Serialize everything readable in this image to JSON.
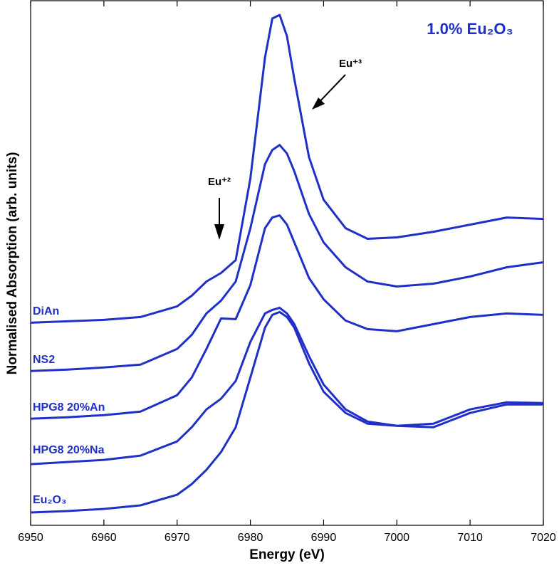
{
  "chart_data": {
    "type": "line",
    "title": "1.0% Eu₂O₃",
    "xlabel": "Energy (eV)",
    "ylabel": "Normalised Absorption (arb. units)",
    "annotations": [
      "Eu⁺³",
      "Eu⁺²"
    ],
    "x": [
      6950,
      6955,
      6960,
      6965,
      6970,
      6972,
      6974,
      6976,
      6978,
      6980,
      6982,
      6983,
      6984,
      6985,
      6986,
      6988,
      6990,
      6993,
      6996,
      7000,
      7005,
      7010,
      7015,
      7020
    ],
    "series": [
      {
        "name": "DiAn",
        "color": "#1f2fc8",
        "values": [
          2.85,
          2.87,
          2.89,
          2.93,
          3.08,
          3.23,
          3.43,
          3.55,
          3.73,
          4.88,
          6.58,
          7.13,
          7.18,
          6.88,
          6.28,
          5.18,
          4.58,
          4.18,
          4.03,
          4.05,
          4.13,
          4.23,
          4.33,
          4.31
        ]
      },
      {
        "name": "NS2",
        "color": "#1f2fc8",
        "values": [
          2.17,
          2.19,
          2.22,
          2.26,
          2.48,
          2.68,
          2.98,
          3.16,
          3.43,
          4.18,
          5.08,
          5.28,
          5.35,
          5.23,
          4.98,
          4.38,
          3.98,
          3.63,
          3.43,
          3.36,
          3.4,
          3.5,
          3.63,
          3.7
        ]
      },
      {
        "name": "HPG8 20%An",
        "color": "#1f2fc8",
        "values": [
          1.5,
          1.52,
          1.55,
          1.6,
          1.83,
          2.08,
          2.48,
          2.91,
          2.9,
          3.38,
          4.18,
          4.33,
          4.36,
          4.23,
          3.98,
          3.48,
          3.18,
          2.88,
          2.76,
          2.73,
          2.83,
          2.93,
          2.98,
          2.96
        ]
      },
      {
        "name": "HPG8 20%Na",
        "color": "#1f2fc8",
        "values": [
          0.86,
          0.89,
          0.92,
          0.98,
          1.18,
          1.38,
          1.63,
          1.78,
          2.03,
          2.58,
          2.98,
          3.03,
          3.06,
          2.98,
          2.83,
          2.38,
          1.98,
          1.63,
          1.46,
          1.4,
          1.43,
          1.63,
          1.73,
          1.72
        ]
      },
      {
        "name": "Eu₂O₃",
        "color": "#1f2fc8",
        "values": [
          0.18,
          0.2,
          0.23,
          0.28,
          0.43,
          0.58,
          0.78,
          1.03,
          1.38,
          2.08,
          2.78,
          2.96,
          3.0,
          2.93,
          2.78,
          2.28,
          1.88,
          1.58,
          1.43,
          1.4,
          1.38,
          1.58,
          1.7,
          1.7
        ]
      }
    ],
    "xlim": [
      6950,
      7020
    ],
    "xticks": [
      6950,
      6960,
      6970,
      6980,
      6990,
      7000,
      7010,
      7020
    ],
    "ylim": [
      0,
      7.38
    ]
  }
}
